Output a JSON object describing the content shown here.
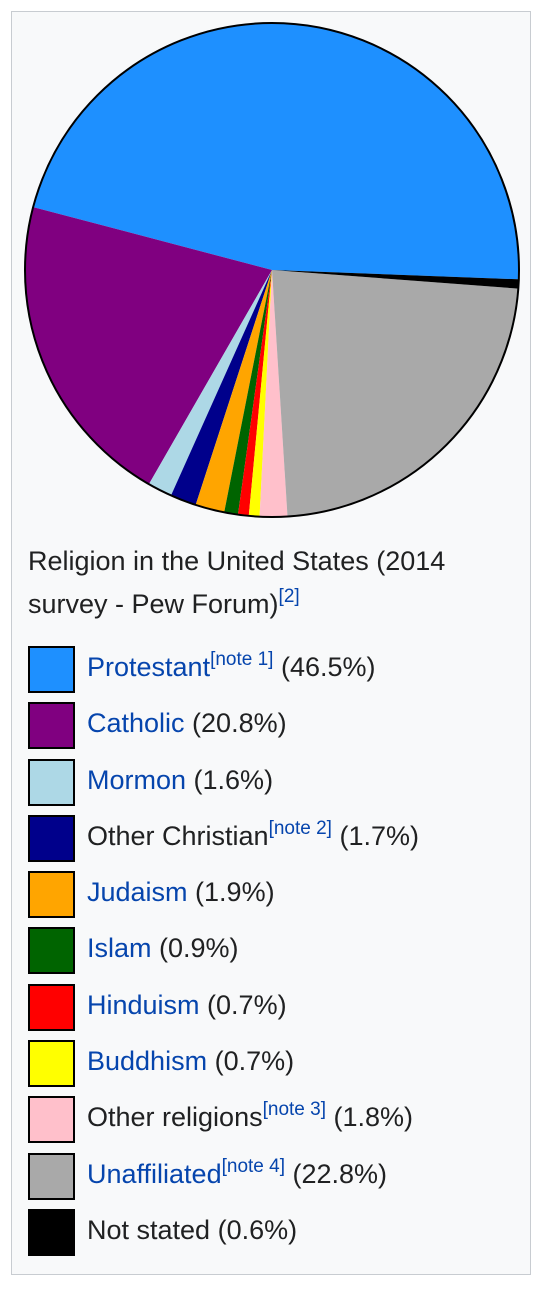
{
  "chart_data": {
    "type": "pie",
    "caption": "Religion in the United States (2014 survey - Pew Forum)",
    "caption_ref": "[2]",
    "slices": [
      {
        "label": "Protestant",
        "note": "[note 1]",
        "value": 46.5,
        "value_text": "(46.5%)",
        "color": "#1e90ff",
        "link": true
      },
      {
        "label": "Catholic",
        "note": "",
        "value": 20.8,
        "value_text": "(20.8%)",
        "color": "#800080",
        "link": true
      },
      {
        "label": "Mormon",
        "note": "",
        "value": 1.6,
        "value_text": "(1.6%)",
        "color": "#add8e6",
        "link": true
      },
      {
        "label": "Other Christian",
        "note": "[note 2]",
        "value": 1.7,
        "value_text": "(1.7%)",
        "color": "#00008b",
        "link": false
      },
      {
        "label": "Judaism",
        "note": "",
        "value": 1.9,
        "value_text": "(1.9%)",
        "color": "#ffa500",
        "link": true
      },
      {
        "label": "Islam",
        "note": "",
        "value": 0.9,
        "value_text": "(0.9%)",
        "color": "#006400",
        "link": true
      },
      {
        "label": "Hinduism",
        "note": "",
        "value": 0.7,
        "value_text": "(0.7%)",
        "color": "#ff0000",
        "link": true
      },
      {
        "label": "Buddhism",
        "note": "",
        "value": 0.7,
        "value_text": "(0.7%)",
        "color": "#ffff00",
        "link": true
      },
      {
        "label": "Other religions",
        "note": "[note 3]",
        "value": 1.8,
        "value_text": "(1.8%)",
        "color": "#ffc0cb",
        "link": false
      },
      {
        "label": "Unaffiliated",
        "note": "[note 4]",
        "value": 22.8,
        "value_text": "(22.8%)",
        "color": "#a9a9a9",
        "link": true
      },
      {
        "label": "Not stated",
        "note": "",
        "value": 0.6,
        "value_text": "(0.6%)",
        "color": "#000000",
        "link": false
      }
    ]
  }
}
